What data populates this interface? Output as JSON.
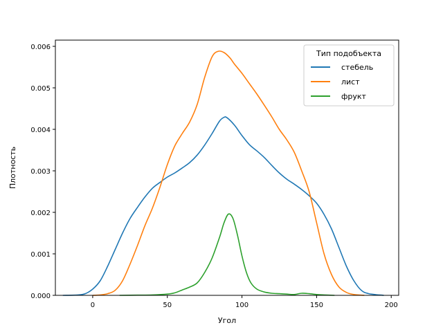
{
  "chart_data": {
    "type": "line",
    "title": "",
    "xlabel": "Угол",
    "ylabel": "Плотность",
    "xlim": [
      -25,
      205
    ],
    "ylim": [
      0,
      0.00615
    ],
    "xticks": [
      0,
      50,
      100,
      150,
      200
    ],
    "yticks": [
      0.0,
      0.001,
      0.002,
      0.003,
      0.004,
      0.005,
      0.006
    ],
    "ytick_labels": [
      "0.000",
      "0.001",
      "0.002",
      "0.003",
      "0.004",
      "0.005",
      "0.006"
    ],
    "grid": false,
    "legend": {
      "title": "Тип подобъекта",
      "placement": "top-right"
    },
    "series": [
      {
        "name": "стебель",
        "color": "#1f77b4",
        "points": [
          [
            -20,
            0.0
          ],
          [
            -10,
            1e-05
          ],
          [
            -5,
            4e-05
          ],
          [
            0,
            0.00015
          ],
          [
            5,
            0.00035
          ],
          [
            10,
            0.0007
          ],
          [
            15,
            0.0011
          ],
          [
            20,
            0.0015
          ],
          [
            25,
            0.00185
          ],
          [
            30,
            0.00212
          ],
          [
            35,
            0.00237
          ],
          [
            40,
            0.00258
          ],
          [
            45,
            0.00272
          ],
          [
            50,
            0.00285
          ],
          [
            55,
            0.00295
          ],
          [
            60,
            0.00307
          ],
          [
            65,
            0.0032
          ],
          [
            70,
            0.00338
          ],
          [
            75,
            0.00362
          ],
          [
            80,
            0.0039
          ],
          [
            85,
            0.0042
          ],
          [
            88,
            0.00429
          ],
          [
            90,
            0.00428
          ],
          [
            95,
            0.0041
          ],
          [
            100,
            0.00385
          ],
          [
            105,
            0.00363
          ],
          [
            110,
            0.00348
          ],
          [
            115,
            0.00332
          ],
          [
            120,
            0.00313
          ],
          [
            125,
            0.00295
          ],
          [
            130,
            0.0028
          ],
          [
            135,
            0.00268
          ],
          [
            140,
            0.00255
          ],
          [
            145,
            0.0024
          ],
          [
            150,
            0.00222
          ],
          [
            155,
            0.00195
          ],
          [
            160,
            0.0016
          ],
          [
            165,
            0.00115
          ],
          [
            170,
            0.0007
          ],
          [
            175,
            0.00035
          ],
          [
            180,
            0.00012
          ],
          [
            185,
            4e-05
          ],
          [
            195,
            0.0
          ]
        ]
      },
      {
        "name": "лист",
        "color": "#ff7f0e",
        "points": [
          [
            0,
            0.0
          ],
          [
            5,
            1e-05
          ],
          [
            10,
            4e-05
          ],
          [
            15,
            0.00012
          ],
          [
            20,
            0.00035
          ],
          [
            25,
            0.00075
          ],
          [
            30,
            0.0012
          ],
          [
            35,
            0.00168
          ],
          [
            40,
            0.0021
          ],
          [
            45,
            0.0026
          ],
          [
            50,
            0.00315
          ],
          [
            55,
            0.0036
          ],
          [
            60,
            0.0039
          ],
          [
            65,
            0.00418
          ],
          [
            70,
            0.0046
          ],
          [
            75,
            0.00525
          ],
          [
            80,
            0.00575
          ],
          [
            84,
            0.00588
          ],
          [
            88,
            0.00585
          ],
          [
            92,
            0.00572
          ],
          [
            95,
            0.00557
          ],
          [
            100,
            0.00535
          ],
          [
            105,
            0.0051
          ],
          [
            110,
            0.00485
          ],
          [
            115,
            0.00458
          ],
          [
            120,
            0.0043
          ],
          [
            125,
            0.004
          ],
          [
            130,
            0.00375
          ],
          [
            135,
            0.00345
          ],
          [
            140,
            0.003
          ],
          [
            145,
            0.0025
          ],
          [
            150,
            0.00175
          ],
          [
            155,
            0.001
          ],
          [
            160,
            0.0005
          ],
          [
            165,
            0.0002
          ],
          [
            170,
            7e-05
          ],
          [
            175,
            2e-05
          ],
          [
            182,
            0.0
          ]
        ]
      },
      {
        "name": "фрукт",
        "color": "#2ca02c",
        "points": [
          [
            18,
            0.0
          ],
          [
            30,
            5e-06
          ],
          [
            40,
            1e-05
          ],
          [
            50,
            3e-05
          ],
          [
            55,
            6e-05
          ],
          [
            60,
            0.00013
          ],
          [
            65,
            0.0002
          ],
          [
            70,
            0.0003
          ],
          [
            75,
            0.00055
          ],
          [
            80,
            0.0009
          ],
          [
            85,
            0.0014
          ],
          [
            88,
            0.00175
          ],
          [
            91,
            0.00196
          ],
          [
            94,
            0.00185
          ],
          [
            97,
            0.00145
          ],
          [
            100,
            0.00095
          ],
          [
            103,
            0.00055
          ],
          [
            106,
            0.0003
          ],
          [
            110,
            0.00015
          ],
          [
            115,
            8e-05
          ],
          [
            120,
            5e-05
          ],
          [
            125,
            4e-05
          ],
          [
            130,
            3e-05
          ],
          [
            135,
            2e-05
          ],
          [
            140,
            5e-05
          ],
          [
            145,
            4e-05
          ],
          [
            150,
            2e-05
          ],
          [
            155,
            1e-05
          ],
          [
            162,
            0.0
          ]
        ]
      }
    ]
  }
}
